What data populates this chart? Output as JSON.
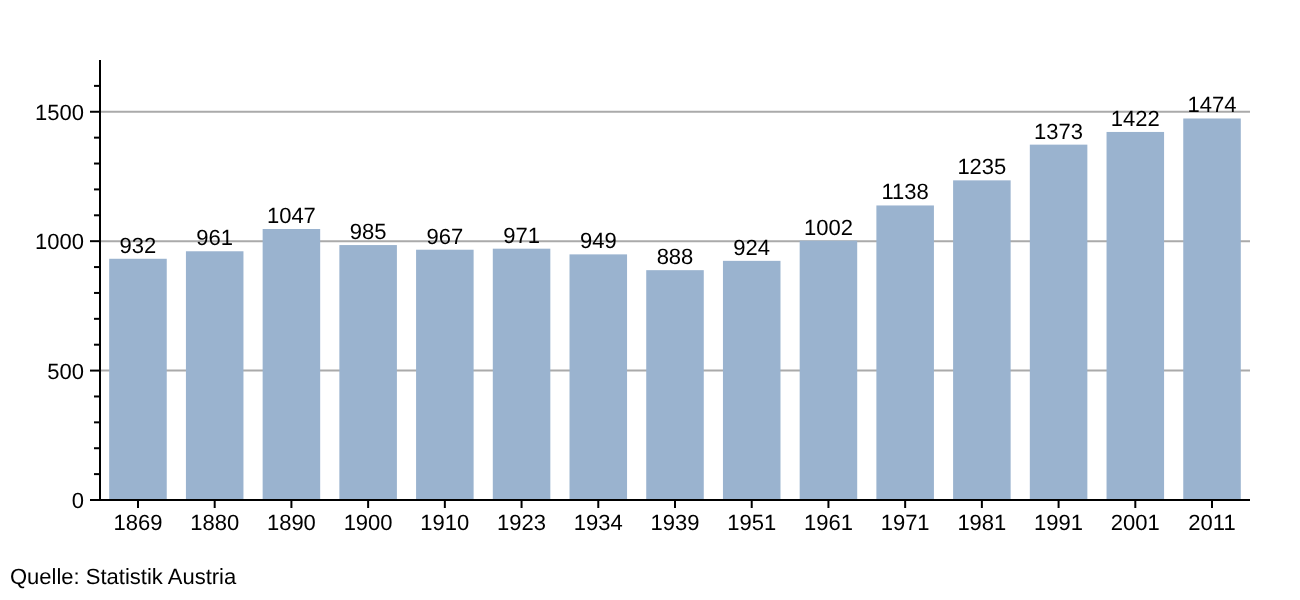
{
  "chart_data": {
    "type": "bar",
    "categories": [
      "1869",
      "1880",
      "1890",
      "1900",
      "1910",
      "1923",
      "1934",
      "1939",
      "1951",
      "1961",
      "1971",
      "1981",
      "1991",
      "2001",
      "2011"
    ],
    "values": [
      932,
      961,
      1047,
      985,
      967,
      971,
      949,
      888,
      924,
      1002,
      1138,
      1235,
      1373,
      1422,
      1474
    ],
    "color": "#9ab3cf",
    "ylim": [
      0,
      1700
    ],
    "yticks": [
      0,
      {
        "value": 100,
        "label": null
      },
      {
        "value": 200,
        "label": null
      },
      {
        "value": 300,
        "label": null
      },
      {
        "value": 400,
        "label": null
      },
      500,
      {
        "value": 600,
        "label": null
      },
      {
        "value": 700,
        "label": null
      },
      {
        "value": 800,
        "label": null
      },
      {
        "value": 900,
        "label": null
      },
      1000,
      {
        "value": 1100,
        "label": null
      },
      {
        "value": 1200,
        "label": null
      },
      {
        "value": 1300,
        "label": null
      },
      {
        "value": 1400,
        "label": null
      },
      1500,
      {
        "value": 1600,
        "label": null
      }
    ],
    "grid": "y",
    "data_labels": true,
    "annotations": [
      "Quelle: Statistik Austria"
    ]
  }
}
